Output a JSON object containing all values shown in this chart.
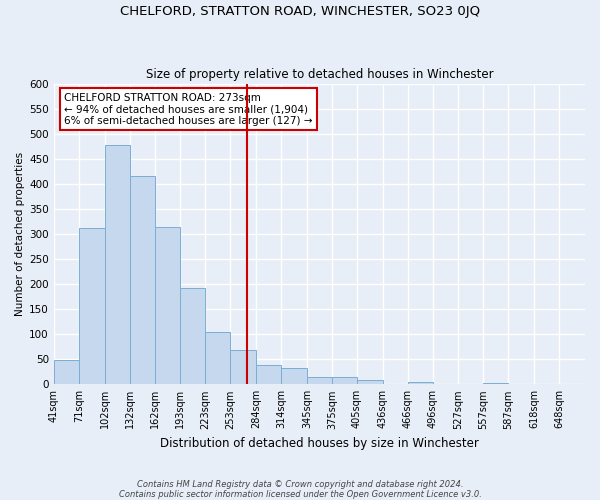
{
  "title": "CHELFORD, STRATTON ROAD, WINCHESTER, SO23 0JQ",
  "subtitle": "Size of property relative to detached houses in Winchester",
  "xlabel": "Distribution of detached houses by size in Winchester",
  "ylabel": "Number of detached properties",
  "bar_color": "#c5d8ee",
  "bar_edge_color": "#7baed4",
  "background_color": "#e8eef7",
  "plot_bg_color": "#e8eef7",
  "grid_color": "#ffffff",
  "bin_labels": [
    "41sqm",
    "71sqm",
    "102sqm",
    "132sqm",
    "162sqm",
    "193sqm",
    "223sqm",
    "253sqm",
    "284sqm",
    "314sqm",
    "345sqm",
    "375sqm",
    "405sqm",
    "436sqm",
    "466sqm",
    "496sqm",
    "527sqm",
    "557sqm",
    "587sqm",
    "618sqm",
    "648sqm"
  ],
  "bar_heights": [
    48,
    311,
    478,
    415,
    314,
    193,
    105,
    69,
    38,
    32,
    14,
    15,
    8,
    0,
    5,
    0,
    0,
    2,
    0,
    0,
    1
  ],
  "bin_edges": [
    41,
    71,
    102,
    132,
    162,
    193,
    223,
    253,
    284,
    314,
    345,
    375,
    405,
    436,
    466,
    496,
    527,
    557,
    587,
    618,
    648,
    679
  ],
  "ylim": [
    0,
    600
  ],
  "yticks": [
    0,
    50,
    100,
    150,
    200,
    250,
    300,
    350,
    400,
    450,
    500,
    550,
    600
  ],
  "vline_x": 273,
  "vline_color": "#cc0000",
  "annotation_title": "CHELFORD STRATTON ROAD: 273sqm",
  "annotation_line1": "← 94% of detached houses are smaller (1,904)",
  "annotation_line2": "6% of semi-detached houses are larger (127) →",
  "annotation_box_color": "#ffffff",
  "annotation_box_edge": "#cc0000",
  "footnote1": "Contains HM Land Registry data © Crown copyright and database right 2024.",
  "footnote2": "Contains public sector information licensed under the Open Government Licence v3.0.",
  "title_fontsize": 9.5,
  "subtitle_fontsize": 8.5,
  "xlabel_fontsize": 8.5,
  "ylabel_fontsize": 7.5,
  "tick_fontsize": 7,
  "annotation_fontsize": 7.5,
  "footnote_fontsize": 6
}
